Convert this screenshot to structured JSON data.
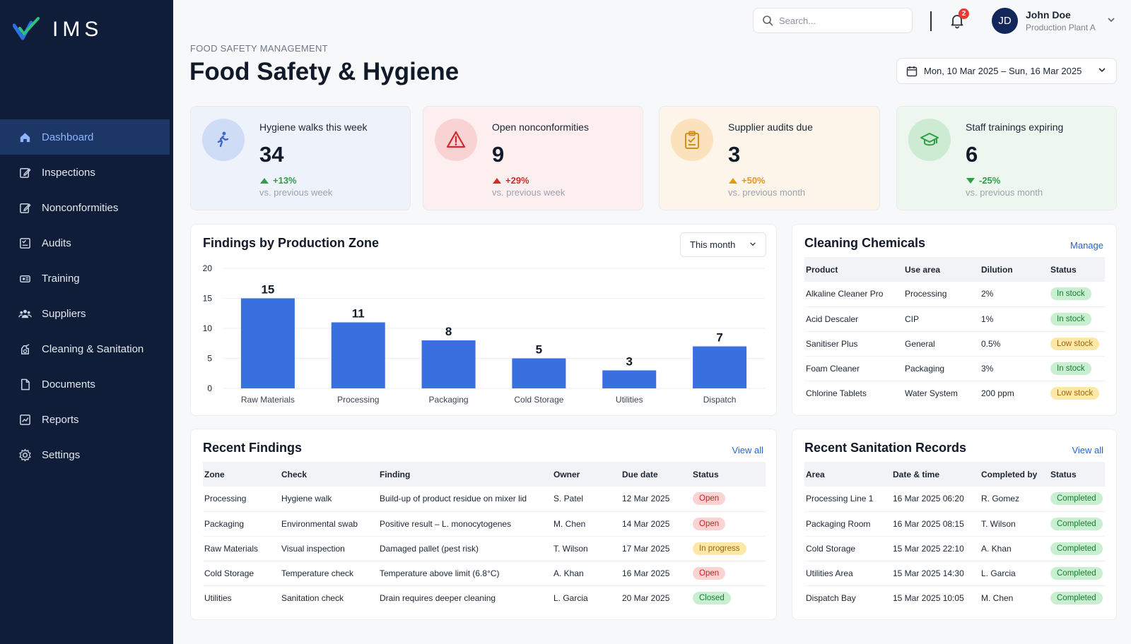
{
  "app": {
    "logo_text": "IMS"
  },
  "sidebar": {
    "items": [
      {
        "label": "Dashboard",
        "icon": "home-icon",
        "active": true
      },
      {
        "label": "Inspections",
        "icon": "edit-icon"
      },
      {
        "label": "Nonconformities",
        "icon": "edit-icon"
      },
      {
        "label": "Audits",
        "icon": "checklist-icon"
      },
      {
        "label": "Training",
        "icon": "training-icon"
      },
      {
        "label": "Suppliers",
        "icon": "users-icon"
      },
      {
        "label": "Cleaning & Sanitation",
        "icon": "sanitation-icon"
      },
      {
        "label": "Documents",
        "icon": "document-icon"
      },
      {
        "label": "Reports",
        "icon": "report-icon"
      },
      {
        "label": "Settings",
        "icon": "gear-icon"
      }
    ]
  },
  "topbar": {
    "search_placeholder": "Search...",
    "notification_count": "2",
    "user": {
      "initials": "JD",
      "name": "John Doe",
      "plant": "Production Plant A"
    }
  },
  "header": {
    "eyebrow": "FOOD SAFETY MANAGEMENT",
    "title": "Food Safety & Hygiene",
    "date_range": "Mon, 10 Mar 2025 – Sun, 16 Mar 2025"
  },
  "kpis": [
    {
      "label": "Hygiene walks this week",
      "value": "34",
      "change": "+13%",
      "direction": "up",
      "change_color": "#2e9e48",
      "sub": "vs. previous week",
      "icon": "walking-person-icon",
      "bg": "#eef3fb",
      "icon_bg": "#cfdcf6",
      "icon_color": "#3f67c9"
    },
    {
      "label": "Open nonconformities",
      "value": "9",
      "change": "+29%",
      "direction": "up",
      "change_color": "#d42a2a",
      "sub": "vs. previous week",
      "icon": "warning-icon",
      "bg": "#fdeff0",
      "icon_bg": "#f9d2d3",
      "icon_color": "#d42a2a"
    },
    {
      "label": "Supplier audits due",
      "value": "3",
      "change": "+50%",
      "direction": "up",
      "change_color": "#e59a12",
      "sub": "vs. previous month",
      "icon": "clipboard-icon",
      "bg": "#fdf5ea",
      "icon_bg": "#fbe2bd",
      "icon_color": "#d6901a"
    },
    {
      "label": "Staff trainings expiring",
      "value": "6",
      "change": "-25%",
      "direction": "down",
      "change_color": "#2e9e48",
      "sub": "vs. previous month",
      "icon": "graduation-cap-icon",
      "bg": "#eef7ef",
      "icon_bg": "#cdebd2",
      "icon_color": "#2e9e48"
    }
  ],
  "findings_chart": {
    "title": "Findings by Production Zone",
    "period_select": "This month"
  },
  "chart_data": {
    "type": "bar",
    "categories": [
      "Raw Materials",
      "Processing",
      "Packaging",
      "Cold Storage",
      "Utilities",
      "Dispatch"
    ],
    "values": [
      15,
      11,
      8,
      5,
      3,
      7
    ],
    "y_ticks": [
      "0",
      "5",
      "10",
      "15",
      "20"
    ],
    "ylim": [
      0,
      20
    ],
    "bar_color": "#3a6fe0",
    "grid": true
  },
  "chemicals": {
    "title": "Cleaning Chemicals",
    "link": "Manage",
    "columns": [
      "Product",
      "Use area",
      "Dilution",
      "Status"
    ],
    "rows": [
      {
        "product": "Alkaline Cleaner Pro",
        "area": "Processing",
        "dilution": "2%",
        "status": "In stock",
        "tone": "green"
      },
      {
        "product": "Acid Descaler",
        "area": "CIP",
        "dilution": "1%",
        "status": "In stock",
        "tone": "green"
      },
      {
        "product": "Sanitiser Plus",
        "area": "General",
        "dilution": "0.5%",
        "status": "Low stock",
        "tone": "yellow"
      },
      {
        "product": "Foam Cleaner",
        "area": "Packaging",
        "dilution": "3%",
        "status": "In stock",
        "tone": "green"
      },
      {
        "product": "Chlorine Tablets",
        "area": "Water System",
        "dilution": "200 ppm",
        "status": "Low stock",
        "tone": "yellow"
      }
    ]
  },
  "findings": {
    "title": "Recent Findings",
    "link": "View all",
    "columns": [
      "Zone",
      "Check",
      "Finding",
      "Owner",
      "Due date",
      "Status"
    ],
    "rows": [
      {
        "zone": "Processing",
        "check": "Hygiene walk",
        "finding": "Build-up of product residue on mixer lid",
        "owner": "S. Patel",
        "due": "12 Mar 2025",
        "status": "Open",
        "tone": "red"
      },
      {
        "zone": "Packaging",
        "check": "Environmental swab",
        "finding": "Positive result – L. monocytogenes",
        "owner": "M. Chen",
        "due": "14 Mar 2025",
        "status": "Open",
        "tone": "red"
      },
      {
        "zone": "Raw Materials",
        "check": "Visual inspection",
        "finding": "Damaged pallet (pest risk)",
        "owner": "T. Wilson",
        "due": "17 Mar 2025",
        "status": "In progress",
        "tone": "yellow"
      },
      {
        "zone": "Cold Storage",
        "check": "Temperature check",
        "finding": "Temperature above limit (6.8°C)",
        "owner": "A. Khan",
        "due": "16 Mar 2025",
        "status": "Open",
        "tone": "red"
      },
      {
        "zone": "Utilities",
        "check": "Sanitation check",
        "finding": "Drain requires deeper cleaning",
        "owner": "L. Garcia",
        "due": "20 Mar 2025",
        "status": "Closed",
        "tone": "green"
      }
    ]
  },
  "sanitation": {
    "title": "Recent Sanitation Records",
    "link": "View all",
    "columns": [
      "Area",
      "Date & time",
      "Completed by",
      "Status"
    ],
    "rows": [
      {
        "area": "Processing Line 1",
        "datetime": "16 Mar 2025 06:20",
        "by": "R. Gomez",
        "status": "Completed",
        "tone": "green"
      },
      {
        "area": "Packaging Room",
        "datetime": "16 Mar 2025 08:15",
        "by": "T. Wilson",
        "status": "Completed",
        "tone": "green"
      },
      {
        "area": "Cold Storage",
        "datetime": "15 Mar 2025 22:10",
        "by": "A. Khan",
        "status": "Completed",
        "tone": "green"
      },
      {
        "area": "Utilities Area",
        "datetime": "15 Mar 2025 14:30",
        "by": "L. Garcia",
        "status": "Completed",
        "tone": "green"
      },
      {
        "area": "Dispatch Bay",
        "datetime": "15 Mar 2025 10:05",
        "by": "M. Chen",
        "status": "Completed",
        "tone": "green"
      }
    ]
  }
}
